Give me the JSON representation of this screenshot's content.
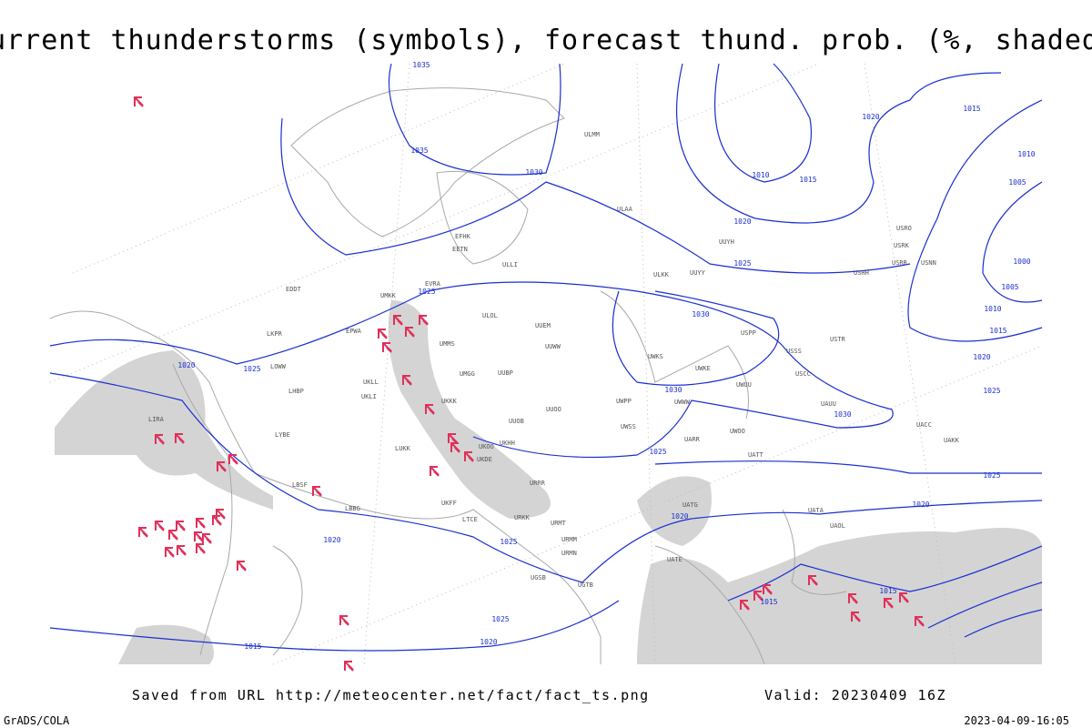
{
  "header": {
    "title": "Current thunderstorms (symbols), forecast thund. prob. (%, shaded)"
  },
  "footer": {
    "source": "Saved from URL http://meteocenter.net/fact/fact_ts.png",
    "valid": "Valid: 20230409 16Z",
    "software": "GrADS/COLA",
    "timestamp": "2023-04-09-16:05"
  },
  "isobar_labels": [
    "1035",
    "1035",
    "1030",
    "1025",
    "1025",
    "1020",
    "1020",
    "1010",
    "1015",
    "1020",
    "1025",
    "1030",
    "1030",
    "1030",
    "1025",
    "1025",
    "1020",
    "1020",
    "1020",
    "1025",
    "1025",
    "1020",
    "1015",
    "1015",
    "1015",
    "1010",
    "1005",
    "1000",
    "1005",
    "1010",
    "1015",
    "1015",
    "1020",
    "1025"
  ],
  "stations": [
    "ULOL",
    "UUEM",
    "UUWW",
    "UMMS",
    "UMGG",
    "UKLL",
    "UKLI",
    "UKKK",
    "UUOO",
    "UUOB",
    "UKHH",
    "UKOO",
    "UKDE",
    "UKFF",
    "URRR",
    "URKK",
    "URMT",
    "URMM",
    "URMN",
    "UGTB",
    "UGSB",
    "LTCE",
    "LBBG",
    "LBSF",
    "LYBE",
    "LUKK",
    "LHBP",
    "LOWW",
    "EPWA",
    "LKPR",
    "EDDT",
    "LIRA",
    "ULLI",
    "ULAA",
    "ULMM",
    "EFHK",
    "EETN",
    "EVRA",
    "UMKK",
    "UUYY",
    "ULKK",
    "UUYH",
    "UWKS",
    "UWKE",
    "UWUU",
    "UWWW",
    "UWPP",
    "UWSS",
    "UWOO",
    "UATT",
    "UARR",
    "UATG",
    "UATE",
    "UUBP",
    "USSS",
    "USCC",
    "USPP",
    "UAUU",
    "USTR",
    "UACC",
    "UAKK",
    "UAOL",
    "UATA",
    "USRR",
    "USNN",
    "USRK",
    "USRO",
    "USHH"
  ]
}
